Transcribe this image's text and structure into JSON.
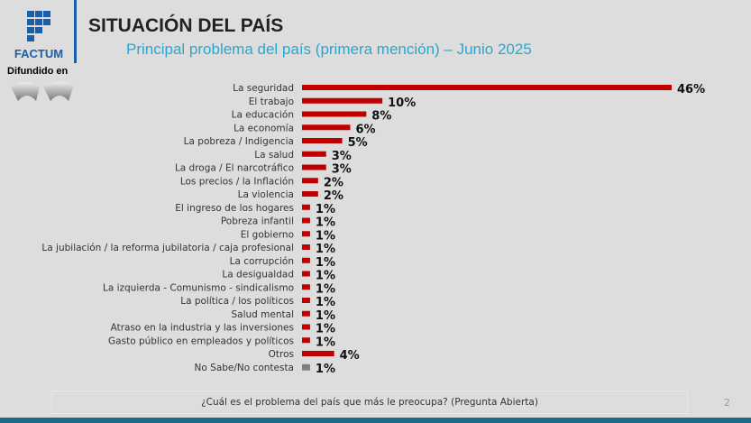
{
  "brand": "FACTUM",
  "broadcast_label": "Difundido en",
  "chart_data": {
    "type": "bar",
    "orientation": "horizontal",
    "title": "SITUACIÓN DEL PAÍS",
    "subtitle": "Principal problema del país (primera mención) – Junio 2025",
    "categories": [
      "La seguridad",
      "El trabajo",
      "La educación",
      "La economía",
      "La pobreza / Indigencia",
      "La salud",
      "La droga / El narcotráfico",
      "Los precios / la Inflación",
      "La violencia",
      "El ingreso de los hogares",
      "Pobreza infantil",
      "El gobierno",
      "La jubilación / la reforma jubilatoria / caja profesional",
      "La corrupción",
      "La desigualdad",
      "La izquierda - Comunismo - sindicalismo",
      "La política / los políticos",
      "Salud mental",
      "Atraso en la industria y las inversiones",
      "Gasto público en empleados y políticos",
      "Otros",
      "No Sabe/No contesta"
    ],
    "values": [
      46,
      10,
      8,
      6,
      5,
      3,
      3,
      2,
      2,
      1,
      1,
      1,
      1,
      1,
      1,
      1,
      1,
      1,
      1,
      1,
      4,
      1
    ],
    "value_labels": [
      "46%",
      "10%",
      "8%",
      "6%",
      "5%",
      "3%",
      "3%",
      "2%",
      "2%",
      "1%",
      "1%",
      "1%",
      "1%",
      "1%",
      "1%",
      "1%",
      "1%",
      "1%",
      "1%",
      "1%",
      "4%",
      "1%"
    ],
    "unit": "%",
    "colors": {
      "bar": "#c00000",
      "last_bar": "#7f7f7f"
    },
    "grid": false,
    "legend": "none"
  },
  "footer_question": "¿Cuál es el problema del país que más le preocupa? (Pregunta Abierta)",
  "page_number": "2"
}
